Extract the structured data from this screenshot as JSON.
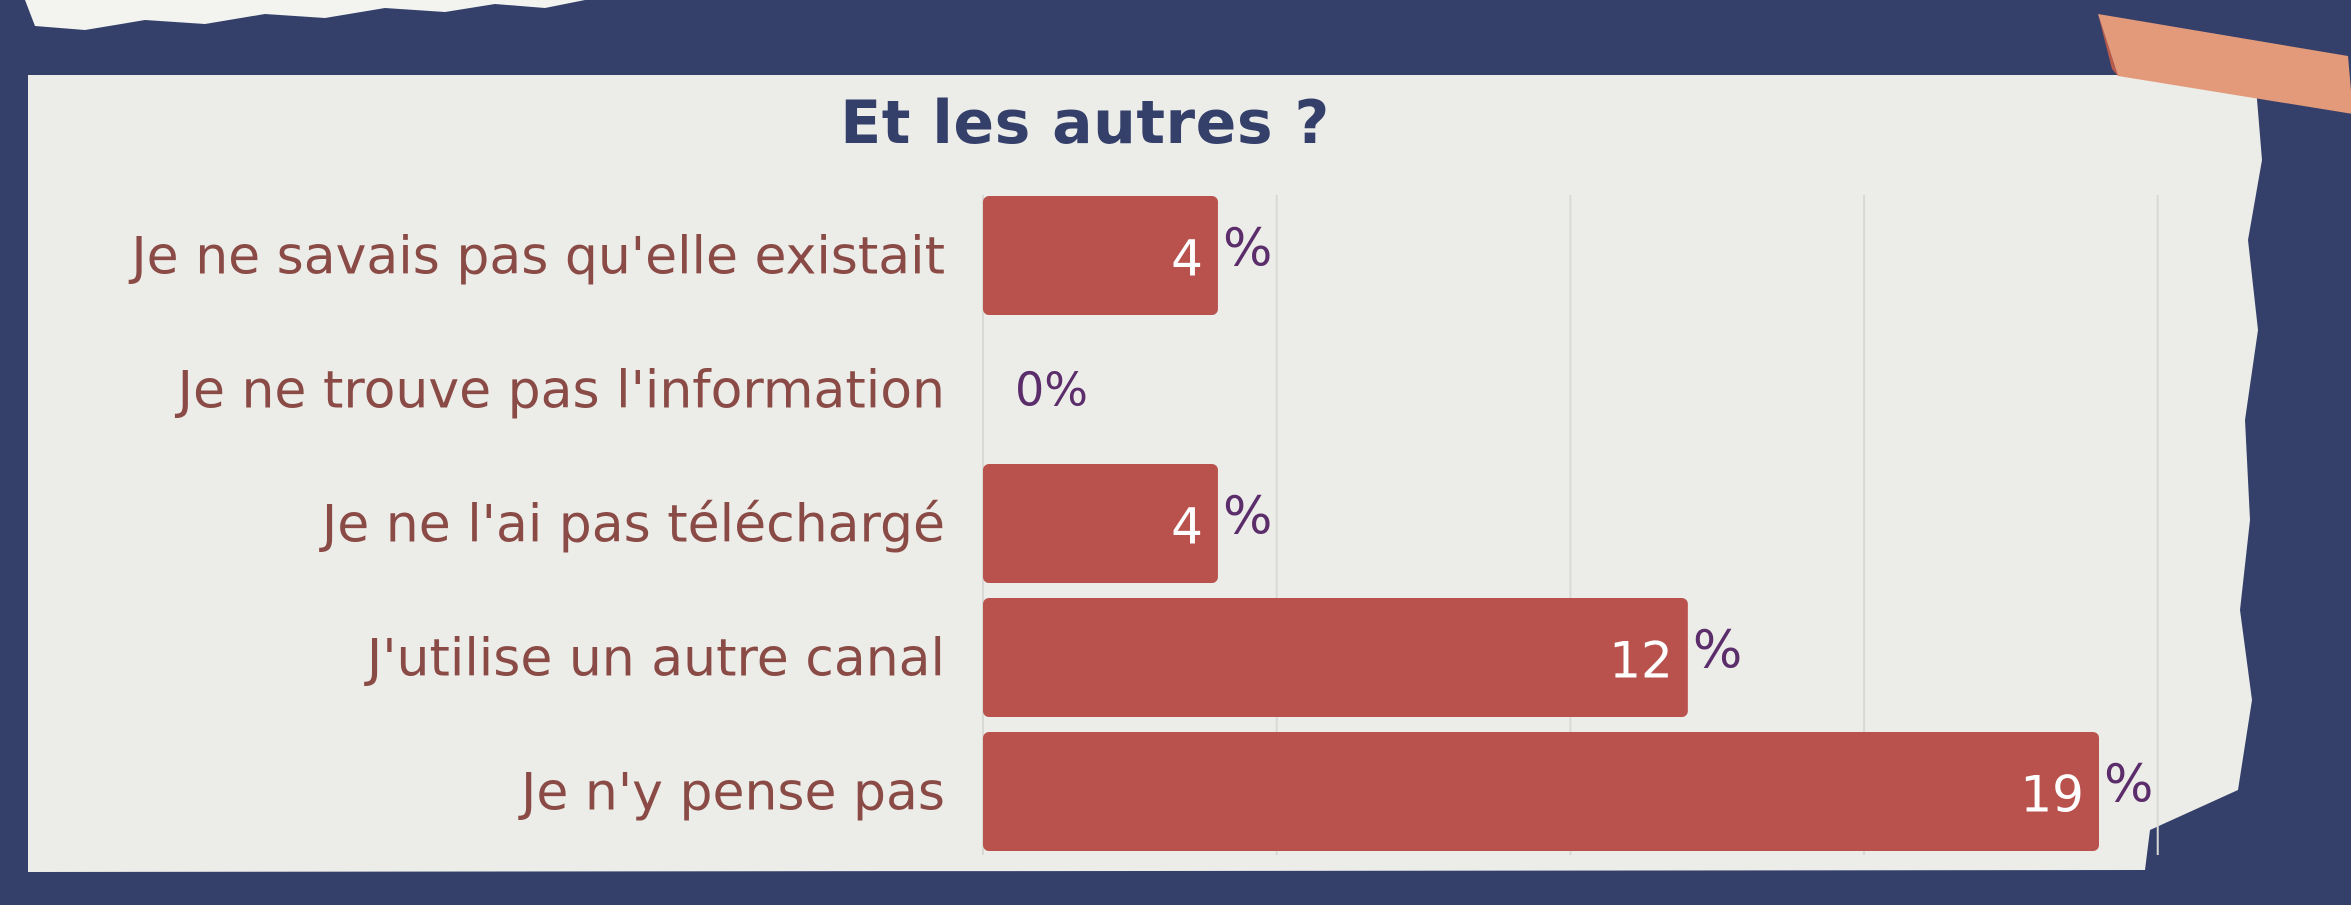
{
  "chart_data": {
    "type": "bar",
    "orientation": "horizontal",
    "title": "Et les autres ?",
    "categories": [
      "Je ne savais pas qu'elle existait",
      "Je ne trouve pas l'information",
      "Je ne l'ai pas téléchargé",
      "J'utilise un autre canal",
      "Je n'y pense pas"
    ],
    "values": [
      4,
      0,
      4,
      12,
      19
    ],
    "value_labels": [
      "4",
      "0",
      "4",
      "12",
      "19"
    ],
    "unit_suffix": "%",
    "xlim": [
      0,
      20
    ],
    "grid": true,
    "bar_color": "#b9524d",
    "label_color": "#8a4a45",
    "percent_color": "#5b2d6a",
    "title_color": "#34406a"
  },
  "colors": {
    "background": "#34406a",
    "paper": "#ecece8",
    "tape": "#e29a7a"
  }
}
